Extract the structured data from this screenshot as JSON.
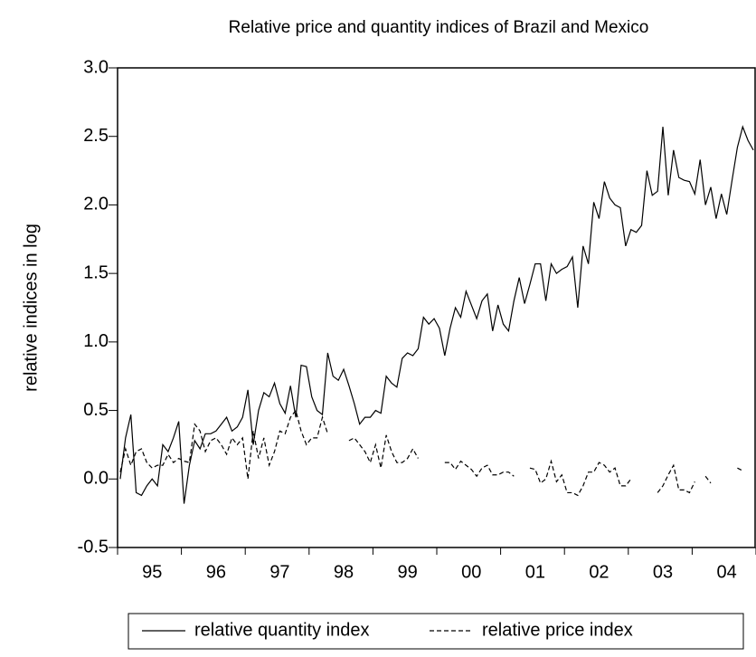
{
  "chart_data": {
    "type": "line",
    "title": "Relative price and quantity indices of Brazil and Mexico",
    "y_label": "relative indices in log",
    "categories": [
      null,
      null,
      null,
      null,
      null,
      null,
      "95",
      null,
      null,
      null,
      null,
      null,
      null,
      null,
      null,
      null,
      null,
      null,
      "96",
      null,
      null,
      null,
      null,
      null,
      null,
      null,
      null,
      null,
      null,
      null,
      "97",
      null,
      null,
      null,
      null,
      null,
      null,
      null,
      null,
      null,
      null,
      null,
      "98",
      null,
      null,
      null,
      null,
      null,
      null,
      null,
      null,
      null,
      null,
      null,
      "99",
      null,
      null,
      null,
      null,
      null,
      null,
      null,
      null,
      null,
      null,
      null,
      "00",
      null,
      null,
      null,
      null,
      null,
      null,
      null,
      null,
      null,
      null,
      null,
      "01",
      null,
      null,
      null,
      null,
      null,
      null,
      null,
      null,
      null,
      null,
      null,
      "02",
      null,
      null,
      null,
      null,
      null,
      null,
      null,
      null,
      null,
      null,
      null,
      "03",
      null,
      null,
      null,
      null,
      null,
      null,
      null,
      null,
      null,
      null,
      null,
      "04",
      null,
      null,
      null,
      null,
      null
    ],
    "series": [
      {
        "name": "relative quantity index",
        "color": "#000000",
        "style": "solid",
        "values": [
          0.0,
          0.3,
          0.47,
          -0.1,
          -0.12,
          -0.05,
          0.0,
          -0.05,
          0.25,
          0.2,
          0.3,
          0.42,
          -0.18,
          0.1,
          0.28,
          0.22,
          0.33,
          0.33,
          0.35,
          0.4,
          0.45,
          0.35,
          0.38,
          0.45,
          0.65,
          0.25,
          0.5,
          0.63,
          0.6,
          0.7,
          0.55,
          0.48,
          0.68,
          0.45,
          0.83,
          0.82,
          0.6,
          0.5,
          0.47,
          0.92,
          0.75,
          0.72,
          0.8,
          0.68,
          0.55,
          0.4,
          0.45,
          0.45,
          0.5,
          0.48,
          0.75,
          0.7,
          0.67,
          0.88,
          0.92,
          0.9,
          0.95,
          1.18,
          1.13,
          1.17,
          1.1,
          0.9,
          1.1,
          1.25,
          1.18,
          1.37,
          1.27,
          1.17,
          1.3,
          1.35,
          1.08,
          1.27,
          1.13,
          1.08,
          1.3,
          1.47,
          1.28,
          1.42,
          1.57,
          1.57,
          1.3,
          1.57,
          1.5,
          1.53,
          1.55,
          1.62,
          1.25,
          1.7,
          1.57,
          2.02,
          1.9,
          2.17,
          2.05,
          2.0,
          1.98,
          1.7,
          1.82,
          1.8,
          1.85,
          2.25,
          2.07,
          2.1,
          2.57,
          2.07,
          2.4,
          2.2,
          2.18,
          2.17,
          2.08,
          2.33,
          2.0,
          2.13,
          1.9,
          2.08,
          1.93,
          2.18,
          2.42,
          2.57,
          2.47,
          2.4
        ]
      },
      {
        "name": "relative price index",
        "color": "#000000",
        "style": "dashed",
        "values": [
          0.05,
          0.22,
          0.1,
          0.2,
          0.22,
          0.12,
          0.08,
          0.1,
          0.1,
          0.18,
          0.12,
          0.15,
          0.13,
          0.12,
          0.4,
          0.35,
          0.2,
          0.28,
          0.3,
          0.25,
          0.18,
          0.3,
          0.25,
          0.3,
          0.0,
          0.35,
          0.15,
          0.3,
          0.1,
          0.2,
          0.35,
          0.33,
          0.45,
          0.5,
          0.35,
          0.25,
          0.3,
          0.3,
          0.45,
          0.33,
          null,
          null,
          null,
          0.28,
          0.3,
          0.25,
          0.2,
          0.12,
          0.25,
          0.08,
          0.32,
          0.2,
          0.12,
          0.12,
          0.15,
          0.22,
          0.15,
          null,
          null,
          null,
          null,
          0.12,
          0.12,
          0.07,
          0.13,
          0.1,
          0.07,
          0.02,
          0.08,
          0.1,
          0.03,
          0.03,
          0.05,
          0.05,
          0.02,
          null,
          null,
          0.08,
          0.07,
          -0.03,
          0.0,
          0.13,
          -0.02,
          0.03,
          -0.1,
          -0.1,
          -0.12,
          -0.05,
          0.05,
          0.05,
          0.12,
          0.1,
          0.05,
          0.08,
          -0.05,
          -0.05,
          0.0,
          null,
          null,
          null,
          null,
          -0.1,
          -0.05,
          0.03,
          0.1,
          -0.08,
          -0.08,
          -0.1,
          -0.02,
          null,
          0.02,
          -0.03,
          null,
          null,
          null,
          null,
          0.08,
          0.06,
          null,
          null
        ]
      }
    ],
    "ylim": [
      -0.5,
      3.0
    ],
    "yticks": [
      {
        "value": -0.5,
        "label": "-0.5"
      },
      {
        "value": 0,
        "label": "0.0"
      },
      0.5,
      {
        "value": 1,
        "label": "1.0"
      },
      1.5,
      {
        "value": 2,
        "label": "2.0"
      },
      2.5,
      {
        "value": 3,
        "label": "3.0"
      }
    ],
    "grid": false,
    "legend": "bottom"
  }
}
